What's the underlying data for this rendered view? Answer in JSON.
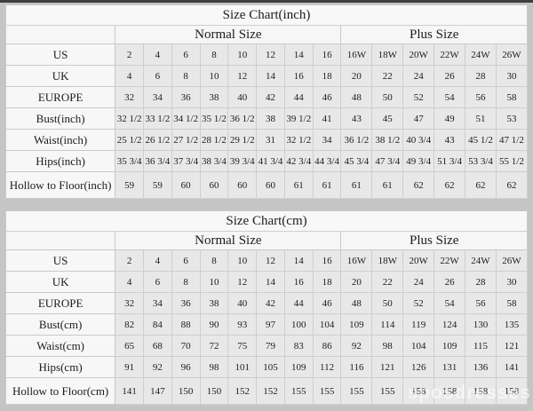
{
  "page": {
    "background_color": "#c5c5c5",
    "top_strip_color": "#3f3f3f",
    "watermark": "sposdresses"
  },
  "chart_data": [
    {
      "type": "table",
      "title": "Size Chart(inch)",
      "section_headers": {
        "normal": "Normal Size",
        "plus": "Plus Size"
      },
      "normal_col_count": 8,
      "plus_col_count": 6,
      "rows": [
        {
          "label": "US",
          "values": [
            "2",
            "4",
            "6",
            "8",
            "10",
            "12",
            "14",
            "16",
            "16W",
            "18W",
            "20W",
            "22W",
            "24W",
            "26W"
          ]
        },
        {
          "label": "UK",
          "values": [
            "4",
            "6",
            "8",
            "10",
            "12",
            "14",
            "16",
            "18",
            "20",
            "22",
            "24",
            "26",
            "28",
            "30"
          ]
        },
        {
          "label": "EUROPE",
          "values": [
            "32",
            "34",
            "36",
            "38",
            "40",
            "42",
            "44",
            "46",
            "48",
            "50",
            "52",
            "54",
            "56",
            "58"
          ]
        },
        {
          "label": "Bust(inch)",
          "values": [
            "32 1/2",
            "33 1/2",
            "34 1/2",
            "35 1/2",
            "36 1/2",
            "38",
            "39 1/2",
            "41",
            "43",
            "45",
            "47",
            "49",
            "51",
            "53"
          ]
        },
        {
          "label": "Waist(inch)",
          "values": [
            "25 1/2",
            "26 1/2",
            "27 1/2",
            "28 1/2",
            "29 1/2",
            "31",
            "32 1/2",
            "34",
            "36 1/2",
            "38 1/2",
            "40 3/4",
            "43",
            "45 1/2",
            "47 1/2"
          ]
        },
        {
          "label": "Hips(inch)",
          "values": [
            "35 3/4",
            "36 3/4",
            "37 3/4",
            "38 3/4",
            "39 3/4",
            "41 3/4",
            "42 3/4",
            "44 3/4",
            "45 3/4",
            "47 3/4",
            "49 3/4",
            "51 3/4",
            "53 3/4",
            "55 1/2"
          ]
        },
        {
          "label": "Hollow to Floor(inch)",
          "values": [
            "59",
            "59",
            "60",
            "60",
            "60",
            "60",
            "61",
            "61",
            "61",
            "61",
            "62",
            "62",
            "62",
            "62"
          ]
        }
      ]
    },
    {
      "type": "table",
      "title": "Size Chart(cm)",
      "section_headers": {
        "normal": "Normal Size",
        "plus": "Plus Size"
      },
      "normal_col_count": 8,
      "plus_col_count": 6,
      "rows": [
        {
          "label": "US",
          "values": [
            "2",
            "4",
            "6",
            "8",
            "10",
            "12",
            "14",
            "16",
            "16W",
            "18W",
            "20W",
            "22W",
            "24W",
            "26W"
          ]
        },
        {
          "label": "UK",
          "values": [
            "4",
            "6",
            "8",
            "10",
            "12",
            "14",
            "16",
            "18",
            "20",
            "22",
            "24",
            "26",
            "28",
            "30"
          ]
        },
        {
          "label": "EUROPE",
          "values": [
            "32",
            "34",
            "36",
            "38",
            "40",
            "42",
            "44",
            "46",
            "48",
            "50",
            "52",
            "54",
            "56",
            "58"
          ]
        },
        {
          "label": "Bust(cm)",
          "values": [
            "82",
            "84",
            "88",
            "90",
            "93",
            "97",
            "100",
            "104",
            "109",
            "114",
            "119",
            "124",
            "130",
            "135"
          ]
        },
        {
          "label": "Waist(cm)",
          "values": [
            "65",
            "68",
            "70",
            "72",
            "75",
            "79",
            "83",
            "86",
            "92",
            "98",
            "104",
            "109",
            "115",
            "121"
          ]
        },
        {
          "label": "Hips(cm)",
          "values": [
            "91",
            "92",
            "96",
            "98",
            "101",
            "105",
            "109",
            "112",
            "116",
            "121",
            "126",
            "131",
            "136",
            "141"
          ]
        },
        {
          "label": "Hollow to Floor(cm)",
          "values": [
            "141",
            "147",
            "150",
            "150",
            "152",
            "152",
            "155",
            "155",
            "155",
            "155",
            "158",
            "158",
            "158",
            "158"
          ]
        }
      ]
    }
  ]
}
